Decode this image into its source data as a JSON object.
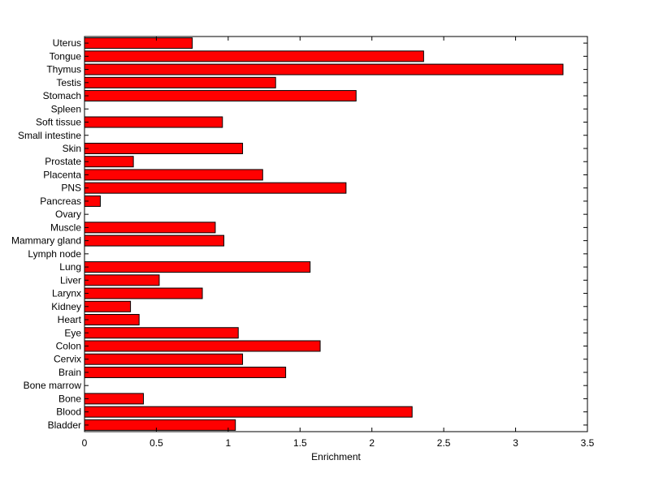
{
  "chart_data": {
    "type": "bar",
    "orientation": "horizontal",
    "title": "",
    "xlabel": "Enrichment",
    "ylabel": "",
    "xlim": [
      0,
      3.5
    ],
    "xticks": [
      0,
      0.5,
      1,
      1.5,
      2,
      2.5,
      3,
      3.5
    ],
    "xtick_labels": [
      "0",
      "0.5",
      "1",
      "1.5",
      "2",
      "2.5",
      "3",
      "3.5"
    ],
    "grid": false,
    "legend": "none",
    "bar_color": "#ff0000",
    "categories": [
      "Bladder",
      "Blood",
      "Bone",
      "Bone marrow",
      "Brain",
      "Cervix",
      "Colon",
      "Eye",
      "Heart",
      "Kidney",
      "Larynx",
      "Liver",
      "Lung",
      "Lymph node",
      "Mammary gland",
      "Muscle",
      "Ovary",
      "Pancreas",
      "PNS",
      "Placenta",
      "Prostate",
      "Skin",
      "Small intestine",
      "Soft tissue",
      "Spleen",
      "Stomach",
      "Testis",
      "Thymus",
      "Tongue",
      "Uterus"
    ],
    "values": [
      1.05,
      2.28,
      0.41,
      0,
      1.4,
      1.1,
      1.64,
      1.07,
      0.38,
      0.32,
      0.82,
      0.52,
      1.57,
      0,
      0.97,
      0.91,
      0,
      0.11,
      1.82,
      1.24,
      0.34,
      1.1,
      0,
      0.96,
      0,
      1.89,
      1.33,
      3.33,
      2.36,
      0.75
    ]
  }
}
